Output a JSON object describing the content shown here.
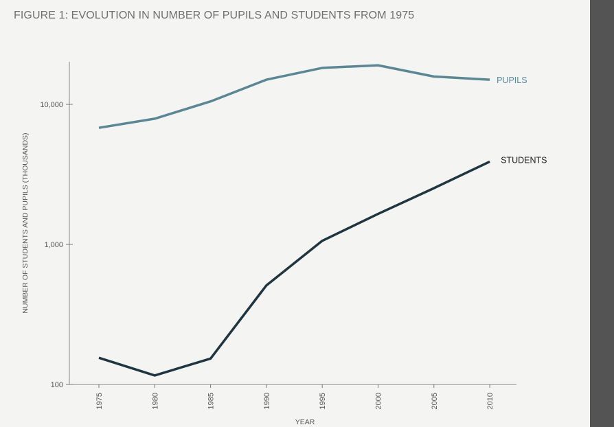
{
  "figure": {
    "title": "FIGURE 1: EVOLUTION IN NUMBER OF PUPILS AND STUDENTS FROM 1975"
  },
  "chart_data": {
    "type": "line",
    "title": "FIGURE 1: EVOLUTION IN NUMBER OF PUPILS AND STUDENTS FROM 1975",
    "xlabel": "YEAR",
    "ylabel": "NUMBER OF STUDENTS AND PUPILS (THOUSANDS)",
    "yscale": "log",
    "ylim": [
      100,
      20000
    ],
    "yticks": [
      100,
      1000,
      10000
    ],
    "ytick_labels": [
      "100",
      "1,000",
      "10,000"
    ],
    "x": [
      "1975",
      "1980",
      "1985",
      "1990",
      "1995",
      "2000",
      "2005",
      "2010"
    ],
    "grid": false,
    "legend": "inline labels at line ends",
    "series": [
      {
        "name": "PUPILS",
        "color": "#5b8795",
        "values": [
          6800,
          7900,
          10500,
          15000,
          18200,
          19000,
          15800,
          15000
        ]
      },
      {
        "name": "STUDENTS",
        "color": "#1f3540",
        "values": [
          155,
          116,
          153,
          510,
          1060,
          1650,
          2520,
          3900
        ]
      }
    ]
  }
}
